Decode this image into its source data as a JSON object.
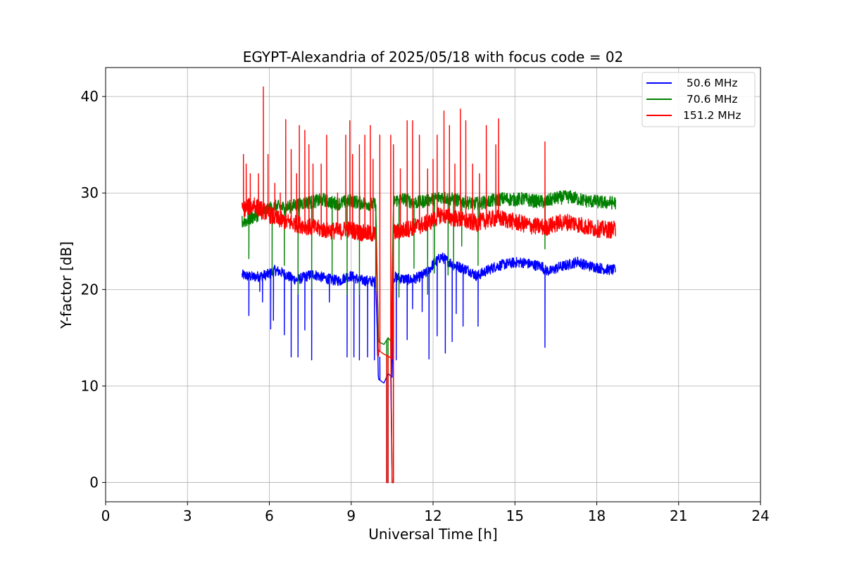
{
  "chart_data": {
    "type": "line",
    "title": "EGYPT-Alexandria of 2025/05/18 with focus code = 02",
    "xlabel": "Universal Time [h]",
    "ylabel": "Y-factor [dB]",
    "xlim": [
      0,
      24
    ],
    "ylim": [
      -2,
      43
    ],
    "xticks": [
      0,
      3,
      6,
      9,
      12,
      15,
      18,
      21,
      24
    ],
    "yticks": [
      0,
      10,
      20,
      30,
      40
    ],
    "grid": true,
    "legend_position": "top-right",
    "series": [
      {
        "name": " 50.6 MHz",
        "color": "#0000ff",
        "x": [
          5.0,
          5.2,
          5.4,
          5.7,
          6.0,
          6.1,
          6.2,
          6.5,
          6.8,
          7.0,
          7.3,
          7.6,
          8.0,
          8.3,
          8.6,
          8.8,
          9.0,
          9.3,
          9.6,
          9.9,
          10.0,
          10.2,
          10.35,
          10.5,
          10.55,
          10.6,
          10.9,
          11.2,
          11.5,
          11.8,
          12.0,
          12.3,
          12.5,
          12.8,
          13.0,
          13.3,
          13.6,
          14.0,
          14.3,
          14.6,
          15.0,
          15.3,
          15.6,
          16.0,
          16.1,
          16.3,
          16.6,
          17.0,
          17.3,
          17.6,
          18.0,
          18.3,
          18.7
        ],
        "y": [
          21.5,
          21.4,
          21.3,
          21.4,
          21.6,
          21.8,
          22.0,
          21.7,
          21.2,
          21.0,
          21.3,
          21.6,
          21.2,
          21.0,
          20.9,
          21.3,
          21.4,
          21.0,
          20.9,
          20.8,
          10.7,
          10.3,
          11.3,
          10.9,
          21.2,
          21.3,
          21.1,
          21.0,
          21.3,
          21.8,
          22.6,
          23.4,
          23.0,
          22.5,
          22.3,
          22.0,
          21.4,
          22.0,
          22.4,
          22.6,
          22.8,
          22.8,
          22.6,
          22.4,
          22.0,
          21.9,
          22.3,
          22.6,
          22.9,
          22.5,
          22.3,
          22.1,
          22.0
        ]
      },
      {
        "name": " 70.6 MHz",
        "color": "#008000",
        "x": [
          5.0,
          5.2,
          5.4,
          5.7,
          6.0,
          6.2,
          6.5,
          6.8,
          7.0,
          7.3,
          7.6,
          8.0,
          8.3,
          8.6,
          8.8,
          9.0,
          9.3,
          9.6,
          9.9,
          10.0,
          10.2,
          10.35,
          10.5,
          10.55,
          10.6,
          10.9,
          11.2,
          11.5,
          11.8,
          12.0,
          12.3,
          12.6,
          13.0,
          13.3,
          13.6,
          14.0,
          14.3,
          14.6,
          15.0,
          15.3,
          15.6,
          16.0,
          16.1,
          16.3,
          16.6,
          17.0,
          17.3,
          17.6,
          18.0,
          18.3,
          18.7
        ],
        "y": [
          27.0,
          27.2,
          27.5,
          27.9,
          28.4,
          28.6,
          28.5,
          28.6,
          28.8,
          29.0,
          29.1,
          29.3,
          29.0,
          28.9,
          29.1,
          29.2,
          29.0,
          28.9,
          28.8,
          14.6,
          14.3,
          15.0,
          14.5,
          29.0,
          29.2,
          29.4,
          29.1,
          29.0,
          29.3,
          29.4,
          29.6,
          29.4,
          29.2,
          29.0,
          28.9,
          29.1,
          29.3,
          29.4,
          29.3,
          29.4,
          29.2,
          29.1,
          29.0,
          29.3,
          29.5,
          29.6,
          29.4,
          29.2,
          29.1,
          29.0,
          29.0
        ]
      },
      {
        "name": "151.2 MHz",
        "color": "#ff0000",
        "x": [
          5.0,
          5.2,
          5.4,
          5.7,
          6.0,
          6.2,
          6.5,
          6.8,
          7.0,
          7.3,
          7.6,
          8.0,
          8.3,
          8.6,
          8.8,
          9.0,
          9.3,
          9.6,
          9.9,
          10.0,
          10.2,
          10.35,
          10.5,
          10.55,
          10.6,
          10.9,
          11.2,
          11.5,
          11.8,
          12.0,
          12.3,
          12.6,
          13.0,
          13.3,
          13.6,
          14.0,
          14.3,
          14.6,
          15.0,
          15.3,
          15.6,
          16.0,
          16.1,
          16.3,
          16.6,
          17.0,
          17.3,
          17.6,
          18.0,
          18.3,
          18.7
        ],
        "y": [
          28.2,
          28.5,
          28.7,
          28.3,
          27.8,
          27.4,
          27.1,
          26.9,
          26.8,
          26.6,
          26.4,
          26.2,
          26.1,
          26.0,
          26.3,
          26.2,
          25.9,
          25.8,
          25.7,
          13.7,
          13.3,
          13.1,
          12.8,
          25.8,
          25.9,
          26.1,
          26.4,
          26.6,
          26.9,
          27.2,
          27.8,
          27.5,
          27.2,
          27.0,
          26.9,
          27.2,
          27.4,
          27.3,
          27.0,
          26.8,
          26.6,
          26.5,
          26.4,
          26.6,
          26.9,
          27.0,
          26.8,
          26.5,
          26.3,
          26.2,
          26.2
        ]
      }
    ],
    "dips_to_zero": {
      "note_x_range_h": [
        10.3,
        10.55
      ],
      "value_db": 0
    },
    "spikes": {
      "151.2 MHz": [
        [
          5.05,
          34
        ],
        [
          5.15,
          33
        ],
        [
          5.3,
          32
        ],
        [
          5.45,
          29.5
        ],
        [
          5.6,
          32
        ],
        [
          5.78,
          41
        ],
        [
          5.95,
          34
        ],
        [
          6.2,
          31
        ],
        [
          6.4,
          30
        ],
        [
          6.6,
          37.6
        ],
        [
          6.8,
          34.5
        ],
        [
          7.0,
          32
        ],
        [
          7.1,
          37
        ],
        [
          7.3,
          36.5
        ],
        [
          7.45,
          35
        ],
        [
          7.6,
          33
        ],
        [
          7.9,
          33
        ],
        [
          8.1,
          36
        ],
        [
          8.5,
          30
        ],
        [
          8.8,
          36
        ],
        [
          8.95,
          37.5
        ],
        [
          9.05,
          34
        ],
        [
          9.3,
          35
        ],
        [
          9.5,
          36
        ],
        [
          9.7,
          37
        ],
        [
          9.8,
          33.5
        ],
        [
          10.05,
          36
        ],
        [
          10.45,
          36
        ],
        [
          10.55,
          35
        ],
        [
          10.8,
          32.5
        ],
        [
          11.05,
          37.5
        ],
        [
          11.25,
          37.5
        ],
        [
          11.5,
          36
        ],
        [
          11.8,
          32.5
        ],
        [
          12.0,
          33.5
        ],
        [
          12.15,
          36
        ],
        [
          12.4,
          38.5
        ],
        [
          12.6,
          37
        ],
        [
          12.8,
          33
        ],
        [
          13.0,
          38.7
        ],
        [
          13.2,
          37.5
        ],
        [
          13.45,
          33
        ],
        [
          13.7,
          32
        ],
        [
          13.95,
          37
        ],
        [
          14.3,
          35
        ],
        [
          14.4,
          37.7
        ],
        [
          16.1,
          35.3
        ]
      ],
      "50.6 MHz": [
        [
          5.25,
          17.3
        ],
        [
          5.65,
          19.8
        ],
        [
          5.75,
          18.7
        ],
        [
          6.05,
          15.9
        ],
        [
          6.15,
          16.8
        ],
        [
          6.55,
          15.3
        ],
        [
          6.8,
          13
        ],
        [
          7.05,
          13
        ],
        [
          7.3,
          15.8
        ],
        [
          7.55,
          12.7
        ],
        [
          8.2,
          18.7
        ],
        [
          8.85,
          13
        ],
        [
          9.1,
          13
        ],
        [
          9.3,
          12.7
        ],
        [
          9.6,
          13
        ],
        [
          9.85,
          12.7
        ],
        [
          10.05,
          13
        ],
        [
          10.65,
          12.7
        ],
        [
          11.05,
          14.8
        ],
        [
          11.25,
          18
        ],
        [
          11.6,
          17.7
        ],
        [
          11.85,
          12.8
        ],
        [
          12.15,
          15.2
        ],
        [
          12.45,
          13.4
        ],
        [
          12.7,
          14.6
        ],
        [
          12.85,
          17.5
        ],
        [
          13.1,
          16.2
        ],
        [
          13.65,
          16.2
        ],
        [
          16.1,
          14
        ]
      ],
      "70.6 MHz": [
        [
          5.25,
          23.2
        ],
        [
          6.1,
          21.5
        ],
        [
          6.55,
          22.5
        ],
        [
          7.05,
          19.5
        ],
        [
          7.55,
          20
        ],
        [
          8.3,
          21.5
        ],
        [
          8.85,
          19.5
        ],
        [
          9.3,
          19.5
        ],
        [
          9.9,
          19.8
        ],
        [
          10.75,
          19.2
        ],
        [
          11.3,
          22.2
        ],
        [
          11.8,
          19.5
        ],
        [
          12.05,
          21.7
        ],
        [
          12.55,
          21.5
        ],
        [
          12.75,
          22
        ],
        [
          13.05,
          24.5
        ],
        [
          13.65,
          22.5
        ],
        [
          16.1,
          24.2
        ]
      ]
    }
  }
}
